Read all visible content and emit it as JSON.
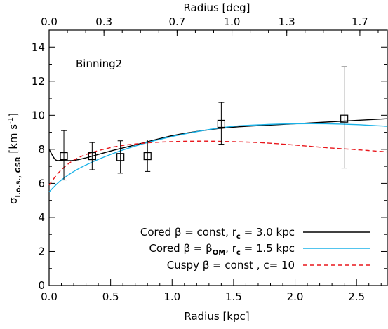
{
  "chart_data": {
    "type": "line",
    "title": "Binning2",
    "xlabel": "Radius [kpc]",
    "ylabel": "σ_l.o.s., GSR [km s^-1]",
    "top_xlabel": "Radius [deg]",
    "xlim": [
      0.0,
      2.75
    ],
    "ylim": [
      0,
      15
    ],
    "top_xlim": [
      0.0,
      1.85
    ],
    "x_ticks": [
      "0.0",
      "0.5",
      "1.0",
      "1.5",
      "2.0",
      "2.5"
    ],
    "x_tick_values": [
      0.0,
      0.5,
      1.0,
      1.5,
      2.0,
      2.5
    ],
    "y_ticks": [
      "0",
      "2",
      "4",
      "6",
      "8",
      "10",
      "12",
      "14"
    ],
    "y_tick_values": [
      0,
      2,
      4,
      6,
      8,
      10,
      12,
      14
    ],
    "top_ticks": [
      "0.0",
      "0.3",
      "0.7",
      "1.0",
      "1.3",
      "1.7"
    ],
    "top_tick_values": [
      0.0,
      0.3,
      0.7,
      1.0,
      1.3,
      1.7
    ],
    "points": {
      "x": [
        0.12,
        0.35,
        0.58,
        0.8,
        1.4,
        2.4
      ],
      "y": [
        7.6,
        7.6,
        7.55,
        7.6,
        9.5,
        9.8
      ],
      "y_low": [
        6.2,
        6.8,
        6.6,
        6.7,
        8.3,
        6.9
      ],
      "y_high": [
        9.1,
        8.4,
        8.5,
        8.55,
        10.75,
        12.85
      ]
    },
    "series": [
      {
        "name": "Cored β = const, r_c = 3.0 kpc",
        "color": "#000000",
        "dash": "solid",
        "x": [
          0.0,
          0.05,
          0.1,
          0.2,
          0.3,
          0.5,
          0.75,
          1.0,
          1.25,
          1.5,
          2.0,
          2.5,
          2.75
        ],
        "y": [
          8.0,
          7.4,
          7.35,
          7.35,
          7.5,
          7.9,
          8.35,
          8.8,
          9.1,
          9.3,
          9.5,
          9.7,
          9.8
        ]
      },
      {
        "name": "Cored β = β_OM, r_c = 1.5 kpc",
        "color": "#1ab2e8",
        "dash": "solid",
        "x": [
          0.0,
          0.1,
          0.25,
          0.5,
          0.75,
          1.0,
          1.25,
          1.5,
          1.75,
          2.0,
          2.25,
          2.5,
          2.75
        ],
        "y": [
          5.5,
          6.2,
          6.9,
          7.7,
          8.3,
          8.75,
          9.1,
          9.35,
          9.45,
          9.5,
          9.5,
          9.45,
          9.35
        ]
      },
      {
        "name": "Cuspy β = const , c= 10",
        "color": "#e8161b",
        "dash": "dashed",
        "x": [
          0.0,
          0.1,
          0.25,
          0.5,
          0.75,
          1.0,
          1.25,
          1.5,
          1.75,
          2.0,
          2.25,
          2.5,
          2.75
        ],
        "y": [
          5.9,
          6.8,
          7.55,
          8.1,
          8.35,
          8.45,
          8.48,
          8.45,
          8.38,
          8.25,
          8.1,
          7.98,
          7.85
        ]
      }
    ],
    "legend": [
      {
        "label": "Cored β = const, r",
        "sub": "c",
        "tail": " = 3.0 kpc"
      },
      {
        "label": "Cored β = β",
        "sub": "OM",
        "tail": ", r",
        "sub2": "c",
        "tail2": " = 1.5 kpc"
      },
      {
        "label": "Cuspy β = const , c= 10",
        "sub": "",
        "tail": ""
      }
    ],
    "legend_position": "bottom-right",
    "grid": false
  }
}
